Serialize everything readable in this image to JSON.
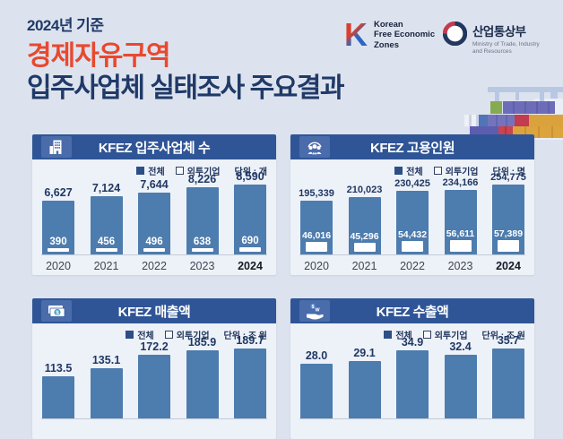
{
  "page": {
    "kicker": "2024년 기준",
    "headline_accent": "경제자유구역",
    "headline_main": "입주사업체 실태조사 주요결과",
    "colors": {
      "background": "#dde3ee",
      "navy_text": "#203a68",
      "accent_red": "#e8492f",
      "panel_header": "#2f5597",
      "bar_blue": "#4d7cae",
      "panel_bg": "#edf1f8"
    }
  },
  "logos": {
    "kfez": {
      "letter": "K",
      "line1": "Korean",
      "line2": "Free Economic",
      "line3": "Zones"
    },
    "motie": {
      "name": "산업통상부",
      "english_line1": "Ministry of Trade, Industry",
      "english_line2": "and Resources"
    }
  },
  "legend": {
    "total": "전체",
    "foreign": "외투기업"
  },
  "chart_data": [
    {
      "type": "bar",
      "title": "KFEZ 입주사업체 수",
      "icon": "building-icon",
      "unit": "단위 : 개",
      "categories": [
        "2020",
        "2021",
        "2022",
        "2023",
        "2024"
      ],
      "series": [
        {
          "name": "전체",
          "values": [
            6627,
            7124,
            7644,
            8226,
            8590
          ],
          "labels": [
            "6,627",
            "7,124",
            "7,644",
            "8,226",
            "8,590"
          ]
        },
        {
          "name": "외투기업",
          "values": [
            390,
            456,
            496,
            638,
            690
          ],
          "labels": [
            "390",
            "456",
            "496",
            "638",
            "690"
          ]
        }
      ],
      "legend_position": "top-right",
      "grid": false
    },
    {
      "type": "bar",
      "title": "KFEZ 고용인원",
      "icon": "people-icon",
      "unit": "단위 : 명",
      "categories": [
        "2020",
        "2021",
        "2022",
        "2023",
        "2024"
      ],
      "series": [
        {
          "name": "전체",
          "values": [
            195339,
            210023,
            230425,
            234166,
            254775
          ],
          "labels": [
            "195,339",
            "210,023",
            "230,425",
            "234,166",
            "254,775"
          ]
        },
        {
          "name": "외투기업",
          "values": [
            46016,
            45296,
            54432,
            56611,
            57389
          ],
          "labels": [
            "46,016",
            "45,296",
            "54,432",
            "56,611",
            "57,389"
          ]
        }
      ],
      "legend_position": "top-right",
      "grid": false
    },
    {
      "type": "bar",
      "title": "KFEZ 매출액",
      "icon": "banknote-dollar-icon",
      "unit": "단위 : 조 원",
      "categories": [],
      "series": [
        {
          "name": "전체",
          "values": [
            113.5,
            135.1,
            172.2,
            185.9,
            189.7
          ],
          "labels": [
            "113.5",
            "135.1",
            "172.2",
            "185.9",
            "189.7"
          ]
        }
      ],
      "legend_position": "top-right",
      "grid": false,
      "clipped_bottom": true
    },
    {
      "type": "bar",
      "title": "KFEZ 수출액",
      "icon": "hand-coins-icon",
      "unit": "단위 : 조 원",
      "categories": [],
      "series": [
        {
          "name": "전체",
          "values": [
            28.0,
            29.1,
            34.9,
            32.4,
            35.7
          ],
          "labels": [
            "28.0",
            "29.1",
            "34.9",
            "32.4",
            "35.7"
          ]
        }
      ],
      "legend_position": "top-right",
      "grid": false,
      "clipped_bottom": true
    }
  ]
}
